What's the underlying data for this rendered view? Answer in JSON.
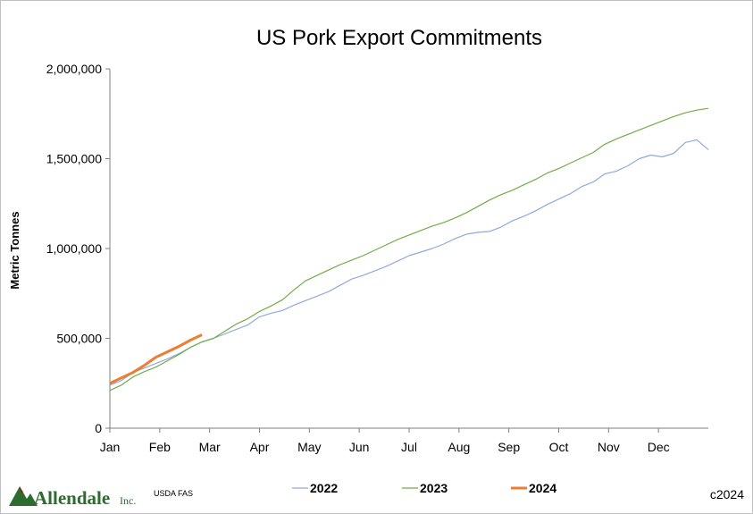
{
  "chart_data": {
    "type": "line",
    "title": "US Pork Export Commitments",
    "ylabel": "Metric Tonnes",
    "xlabel": "",
    "x_tick_labels": [
      "Jan",
      "Feb",
      "Mar",
      "Apr",
      "May",
      "Jun",
      "Jul",
      "Aug",
      "Sep",
      "Oct",
      "Nov",
      "Dec"
    ],
    "xlim": [
      0,
      52
    ],
    "y_tick_labels": [
      "0",
      "500,000",
      "1,000,000",
      "1,500,000",
      "2,000,000"
    ],
    "y_ticks": [
      0,
      500000,
      1000000,
      1500000,
      2000000
    ],
    "ylim": [
      0,
      2000000
    ],
    "grid": false,
    "legend_position": "bottom",
    "series": [
      {
        "name": "2022",
        "color": "#8faadc",
        "x": [
          0,
          1,
          2,
          3,
          4,
          5,
          6,
          7,
          8,
          9,
          10,
          11,
          12,
          13,
          14,
          15,
          16,
          17,
          18,
          19,
          20,
          21,
          22,
          23,
          24,
          25,
          26,
          27,
          28,
          29,
          30,
          31,
          32,
          33,
          34,
          35,
          36,
          37,
          38,
          39,
          40,
          41,
          42,
          43,
          44,
          45,
          46,
          47,
          48,
          49,
          50,
          51,
          52
        ],
        "y": [
          240000,
          265000,
          310000,
          335000,
          360000,
          385000,
          415000,
          450000,
          480000,
          500000,
          525000,
          550000,
          575000,
          620000,
          640000,
          655000,
          685000,
          710000,
          735000,
          760000,
          795000,
          830000,
          850000,
          875000,
          900000,
          930000,
          960000,
          980000,
          1000000,
          1025000,
          1055000,
          1080000,
          1090000,
          1095000,
          1120000,
          1155000,
          1180000,
          1210000,
          1245000,
          1275000,
          1305000,
          1345000,
          1370000,
          1415000,
          1430000,
          1460000,
          1500000,
          1520000,
          1510000,
          1530000,
          1590000,
          1605000,
          1550000
        ]
      },
      {
        "name": "2023",
        "color": "#70ad47",
        "x": [
          0,
          1,
          2,
          3,
          4,
          5,
          6,
          7,
          8,
          9,
          10,
          11,
          12,
          13,
          14,
          15,
          16,
          17,
          18,
          19,
          20,
          21,
          22,
          23,
          24,
          25,
          26,
          27,
          28,
          29,
          30,
          31,
          32,
          33,
          34,
          35,
          36,
          37,
          38,
          39,
          40,
          41,
          42,
          43,
          44,
          45,
          46,
          47,
          48,
          49,
          50,
          51,
          52
        ],
        "y": [
          210000,
          240000,
          285000,
          315000,
          340000,
          375000,
          410000,
          450000,
          480000,
          500000,
          540000,
          580000,
          610000,
          650000,
          680000,
          715000,
          770000,
          820000,
          850000,
          880000,
          910000,
          935000,
          960000,
          990000,
          1020000,
          1050000,
          1075000,
          1100000,
          1125000,
          1145000,
          1170000,
          1200000,
          1235000,
          1270000,
          1300000,
          1325000,
          1355000,
          1385000,
          1420000,
          1445000,
          1475000,
          1505000,
          1535000,
          1580000,
          1610000,
          1635000,
          1660000,
          1685000,
          1710000,
          1735000,
          1755000,
          1770000,
          1780000
        ]
      },
      {
        "name": "2024",
        "color": "#ed7d31",
        "x": [
          0,
          1,
          2,
          3,
          4,
          5,
          6,
          7,
          8
        ],
        "y": [
          250000,
          280000,
          310000,
          350000,
          395000,
          425000,
          455000,
          490000,
          520000
        ]
      }
    ]
  },
  "footer": {
    "logo_text": "Allendale",
    "logo_suffix": "Inc.",
    "source": "USDA FAS",
    "copyright": "c2024"
  }
}
